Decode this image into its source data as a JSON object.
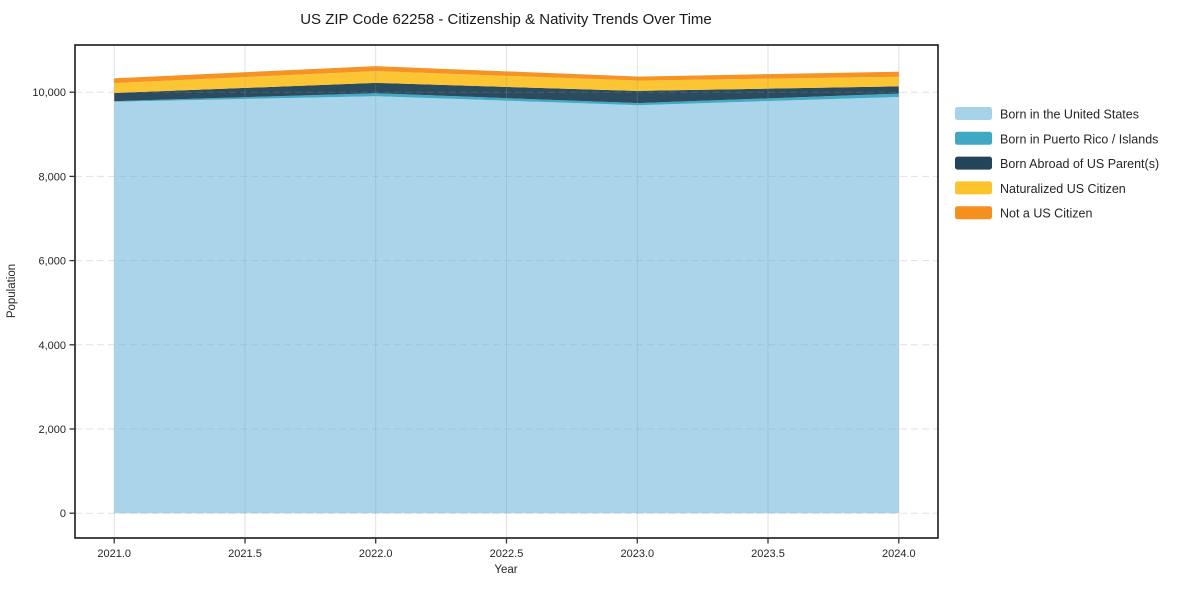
{
  "chart_data": {
    "type": "area",
    "stacked": true,
    "title": "US ZIP Code 62258 - Citizenship & Nativity Trends Over Time",
    "xlabel": "Year",
    "ylabel": "Population",
    "x": [
      2021,
      2022,
      2023,
      2024
    ],
    "series": [
      {
        "name": "Born in the United States",
        "color": "#A6D3E8",
        "values": [
          9770,
          9905,
          9690,
          9885
        ]
      },
      {
        "name": "Born in Puerto Rico / Islands",
        "color": "#3EA8C5",
        "values": [
          15,
          70,
          50,
          80
        ]
      },
      {
        "name": "Born Abroad of US Parent(s)",
        "color": "#244559",
        "values": [
          195,
          245,
          290,
          175
        ]
      },
      {
        "name": "Naturalized US Citizen",
        "color": "#FCC32D",
        "values": [
          235,
          280,
          245,
          225
        ]
      },
      {
        "name": "Not a US Citizen",
        "color": "#F5901E",
        "values": [
          115,
          120,
          95,
          120
        ]
      }
    ],
    "x_tick_labels": [
      "2021.0",
      "2021.5",
      "2022.0",
      "2022.5",
      "2023.0",
      "2023.5",
      "2024.0"
    ],
    "x_tick_values": [
      2021,
      2021.5,
      2022,
      2022.5,
      2023,
      2023.5,
      2024
    ],
    "y_tick_labels": [
      "0",
      "2,000",
      "4,000",
      "6,000",
      "8,000",
      "10,000"
    ],
    "y_tick_values": [
      0,
      2000,
      4000,
      6000,
      8000,
      10000
    ],
    "xlim": [
      2020.85,
      2024.15
    ],
    "ylim": [
      -590,
      11120
    ],
    "grid": true,
    "legend_position": "right-outside",
    "colors": {
      "background": "#FFFFFF",
      "frame": "#1a1a1a",
      "grid": "#8C96A0",
      "tick": "#333333",
      "text": "#262626"
    }
  }
}
